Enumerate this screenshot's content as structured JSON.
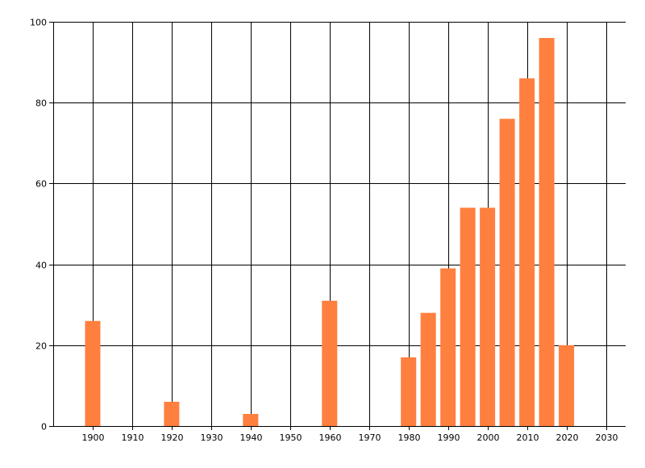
{
  "chart_data": {
    "type": "bar",
    "title": "",
    "xlabel": "",
    "ylabel": "",
    "x": [
      1900,
      1920,
      1940,
      1960,
      1980,
      1985,
      1990,
      1995,
      2000,
      2005,
      2010,
      2015,
      2020
    ],
    "values": [
      26,
      6,
      3,
      31,
      17,
      28,
      39,
      54,
      54,
      76,
      86,
      96,
      20
    ],
    "xlim": [
      1890,
      2035
    ],
    "ylim": [
      0,
      100
    ],
    "x_ticks": [
      "1900",
      "1910",
      "1920",
      "1930",
      "1940",
      "1950",
      "1960",
      "1970",
      "1980",
      "1990",
      "2000",
      "2010",
      "2020",
      "2030"
    ],
    "y_ticks": [
      "0",
      "20",
      "40",
      "60",
      "80",
      "100"
    ],
    "grid": true,
    "bar_color": "#FF7F3F"
  }
}
